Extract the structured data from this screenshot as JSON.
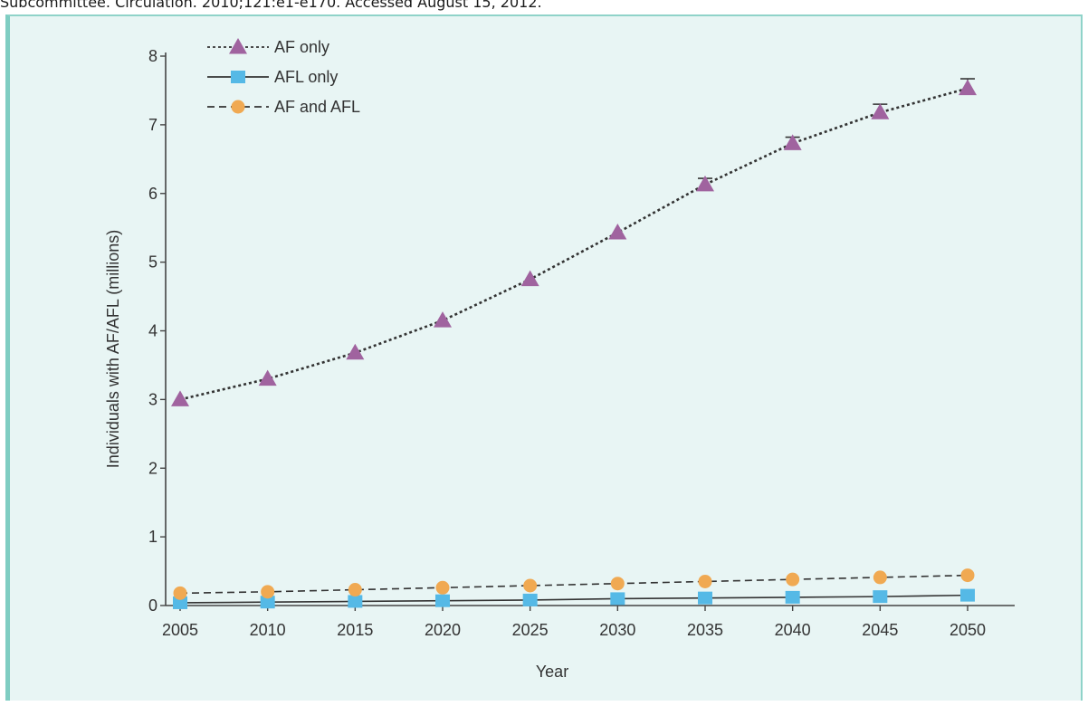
{
  "caption": "Subcommittee. Circulation. 2010;121:e1-e170. Accessed August 15, 2012.",
  "chart_data": {
    "type": "line",
    "x": [
      2005,
      2010,
      2015,
      2020,
      2025,
      2030,
      2035,
      2040,
      2045,
      2050
    ],
    "xticks": [
      "2005",
      "2010",
      "2015",
      "2020",
      "2025",
      "2030",
      "2035",
      "2040",
      "2045",
      "2050"
    ],
    "yticks": [
      "0",
      "1",
      "2",
      "3",
      "4",
      "5",
      "6",
      "7",
      "8"
    ],
    "xlabel": "Year",
    "ylabel": "Individuals with AF/AFL (millions)",
    "ylim": [
      0,
      8
    ],
    "grid": false,
    "legend_position": "top-left",
    "series": [
      {
        "name": "AF only",
        "values": [
          3.0,
          3.3,
          3.68,
          4.15,
          4.75,
          5.43,
          6.13,
          6.73,
          7.18,
          7.53
        ],
        "error_upper": [
          null,
          null,
          null,
          null,
          null,
          null,
          6.22,
          6.82,
          7.3,
          7.67
        ],
        "color": "#a0639f",
        "marker": "triangle",
        "line_style": "dotted"
      },
      {
        "name": "AFL only",
        "values": [
          0.04,
          0.05,
          0.06,
          0.07,
          0.08,
          0.1,
          0.11,
          0.12,
          0.13,
          0.15
        ],
        "color": "#55b9e6",
        "marker": "square",
        "line_style": "solid"
      },
      {
        "name": "AF and AFL",
        "values": [
          0.18,
          0.2,
          0.23,
          0.26,
          0.29,
          0.32,
          0.35,
          0.38,
          0.41,
          0.44
        ],
        "color": "#f0a952",
        "marker": "circle",
        "line_style": "dashed"
      }
    ]
  }
}
